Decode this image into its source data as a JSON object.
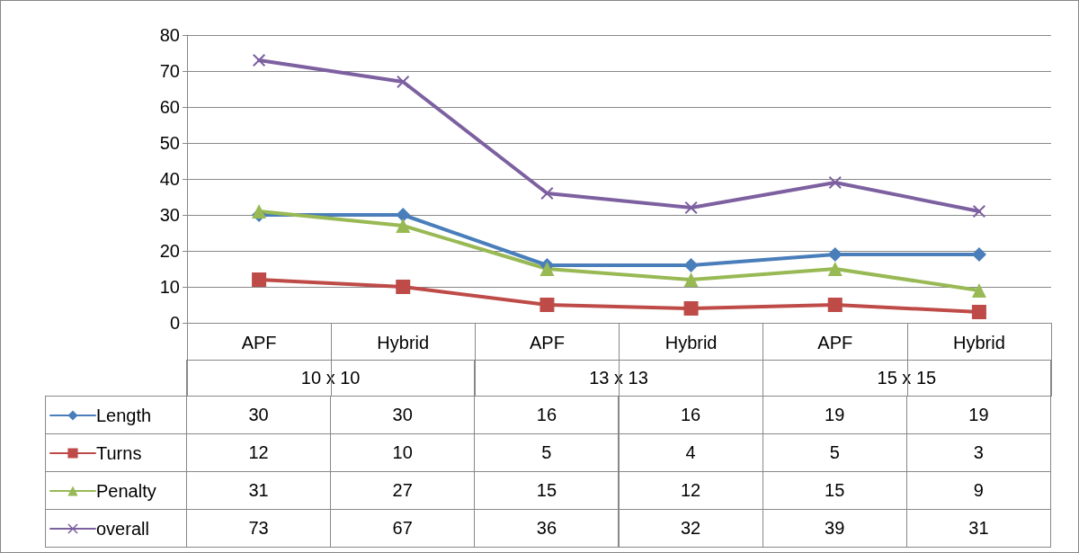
{
  "chart_data": {
    "type": "line",
    "categories": [
      "APF",
      "Hybrid",
      "APF",
      "Hybrid",
      "APF",
      "Hybrid"
    ],
    "annotations": [
      "10 x 10",
      "13 x 13",
      "15 x 15"
    ],
    "series": [
      {
        "name": "Length",
        "color": "#4a7ebb",
        "marker": "diamond",
        "values": [
          30,
          30,
          16,
          16,
          19,
          19
        ]
      },
      {
        "name": "Turns",
        "color": "#be4b48",
        "marker": "square",
        "values": [
          12,
          10,
          5,
          4,
          5,
          3
        ]
      },
      {
        "name": "Penalty",
        "color": "#98b954",
        "marker": "triangle",
        "values": [
          31,
          27,
          15,
          12,
          15,
          9
        ]
      },
      {
        "name": "overall",
        "color": "#7d60a0",
        "marker": "cross",
        "values": [
          73,
          67,
          36,
          32,
          39,
          31
        ]
      }
    ],
    "ylim": [
      0,
      80
    ],
    "yticks": [
      0,
      10,
      20,
      30,
      40,
      50,
      60,
      70,
      80
    ],
    "grid": "y",
    "legend": "bottom left",
    "data_labels": true
  }
}
